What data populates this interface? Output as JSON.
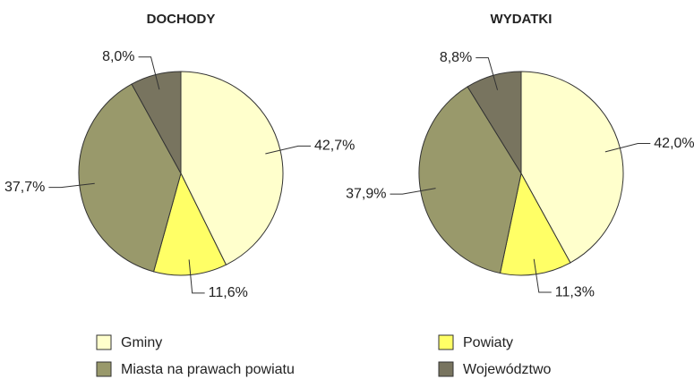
{
  "chart_data": [
    {
      "type": "pie",
      "title": "DOCHODY",
      "values": [
        42.7,
        11.6,
        37.7,
        8.0
      ],
      "value_labels": [
        "42,7%",
        "11,6%",
        "37,7%",
        "8,0%"
      ]
    },
    {
      "type": "pie",
      "title": "WYDATKI",
      "values": [
        42.0,
        11.3,
        37.9,
        8.8
      ],
      "value_labels": [
        "42,0%",
        "11,3%",
        "37,9%",
        "8,8%"
      ]
    }
  ],
  "legend": {
    "items": [
      {
        "name": "Gminy",
        "color": "#ffffcc"
      },
      {
        "name": "Powiaty",
        "color": "#ffff66"
      },
      {
        "name": "Miasta na prawach powiatu",
        "color": "#99996b"
      },
      {
        "name": "Województwo",
        "color": "#78745f"
      }
    ]
  }
}
